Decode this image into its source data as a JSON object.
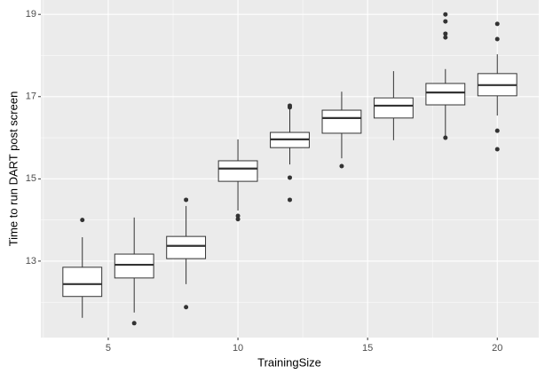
{
  "chart_data": {
    "type": "box",
    "xlabel": "TrainingSize",
    "ylabel": "Time to run DART post screen",
    "xlim": [
      2.4,
      21.6
    ],
    "xticks": [
      5,
      10,
      15,
      20
    ],
    "xminor": [
      2.5,
      7.5,
      12.5,
      17.5
    ],
    "ylim": [
      11.14,
      19.35
    ],
    "yticks": [
      13,
      15,
      17,
      19
    ],
    "yminor": [
      12,
      14,
      16,
      18
    ],
    "grid": true,
    "panel_color": "#ebebeb",
    "box_color": "#333333",
    "boxes": [
      {
        "x": 4,
        "min": 11.62,
        "q1": 12.14,
        "median": 12.44,
        "q3": 12.85,
        "max": 13.58,
        "outliers": [
          14.0
        ]
      },
      {
        "x": 6,
        "min": 11.75,
        "q1": 12.59,
        "median": 12.91,
        "q3": 13.17,
        "max": 14.06,
        "outliers": [
          11.49
        ]
      },
      {
        "x": 8,
        "min": 12.44,
        "q1": 13.06,
        "median": 13.37,
        "q3": 13.6,
        "max": 14.34,
        "outliers": [
          14.49,
          11.88
        ]
      },
      {
        "x": 10,
        "min": 14.23,
        "q1": 14.94,
        "median": 15.25,
        "q3": 15.44,
        "max": 15.96,
        "outliers": [
          14.1,
          14.02
        ]
      },
      {
        "x": 12,
        "min": 15.35,
        "q1": 15.76,
        "median": 15.96,
        "q3": 16.13,
        "max": 16.74,
        "outliers": [
          16.78,
          16.74,
          15.03,
          14.49
        ]
      },
      {
        "x": 14,
        "min": 15.5,
        "q1": 16.11,
        "median": 16.48,
        "q3": 16.67,
        "max": 17.12,
        "outliers": [
          15.31
        ]
      },
      {
        "x": 16,
        "min": 15.94,
        "q1": 16.48,
        "median": 16.78,
        "q3": 16.97,
        "max": 17.62,
        "outliers": []
      },
      {
        "x": 18,
        "min": 16.0,
        "q1": 16.8,
        "median": 17.1,
        "q3": 17.32,
        "max": 17.67,
        "outliers": [
          19.0,
          18.83,
          18.53,
          18.44,
          16.0
        ]
      },
      {
        "x": 20,
        "min": 16.54,
        "q1": 17.02,
        "median": 17.28,
        "q3": 17.56,
        "max": 18.03,
        "outliers": [
          18.77,
          18.4,
          16.17,
          15.72
        ]
      }
    ]
  }
}
